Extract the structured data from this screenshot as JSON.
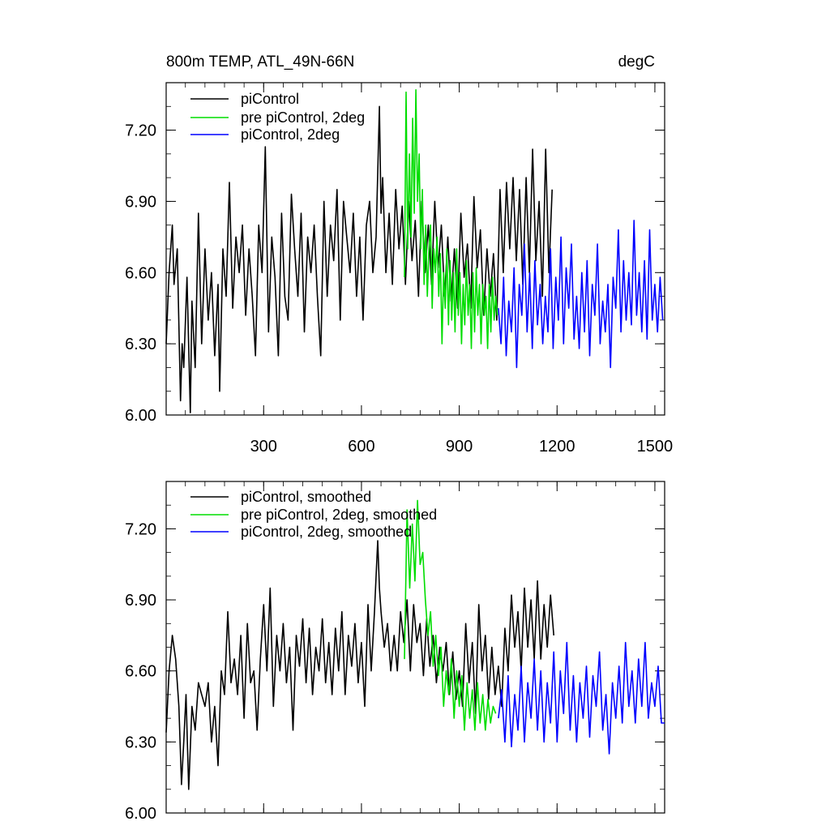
{
  "chart_data": [
    {
      "type": "line",
      "title_left": "800m TEMP, ATL_49N-66N",
      "title_right": "degC",
      "xlim": [
        1,
        1530
      ],
      "ylim": [
        6.0,
        7.4
      ],
      "xticks": [
        300,
        600,
        900,
        1200,
        1500
      ],
      "xtick_labels": [
        "300",
        "600",
        "900",
        "1200",
        "1500"
      ],
      "yticks": [
        6.0,
        6.3,
        6.6,
        6.9,
        7.2
      ],
      "ytick_labels": [
        "6.00",
        "6.30",
        "6.60",
        "6.90",
        "7.20"
      ],
      "legend": [
        "piControl",
        "pre piControl, 2deg",
        "piControl, 2deg"
      ],
      "series": [
        {
          "name": "piControl",
          "color": "#000000",
          "x": [
            1,
            10,
            20,
            25,
            35,
            45,
            50,
            55,
            65,
            75,
            80,
            90,
            100,
            110,
            120,
            130,
            140,
            150,
            160,
            165,
            175,
            185,
            195,
            205,
            215,
            225,
            235,
            245,
            255,
            265,
            275,
            285,
            295,
            305,
            315,
            325,
            335,
            345,
            355,
            365,
            375,
            385,
            395,
            405,
            415,
            425,
            435,
            445,
            455,
            465,
            475,
            485,
            495,
            505,
            515,
            525,
            535,
            545,
            555,
            565,
            575,
            585,
            595,
            605,
            615,
            625,
            635,
            645,
            655,
            660,
            665,
            675,
            685,
            695,
            705,
            715,
            725,
            735,
            745,
            755,
            765,
            775,
            785,
            795,
            805,
            815,
            825,
            835,
            845,
            855,
            865,
            875,
            885,
            895,
            905,
            915,
            925,
            935,
            945,
            955,
            965,
            975,
            985,
            995,
            1005,
            1015,
            1025,
            1035,
            1045,
            1055,
            1065,
            1075,
            1085,
            1095,
            1105,
            1115,
            1125,
            1135,
            1145,
            1155,
            1165,
            1175,
            1185
          ],
          "values": [
            6.3,
            6.6,
            6.8,
            6.55,
            6.7,
            6.06,
            6.3,
            6.2,
            6.58,
            6.01,
            6.48,
            6.2,
            6.85,
            6.3,
            6.7,
            6.4,
            6.6,
            6.25,
            6.55,
            6.1,
            6.7,
            6.5,
            6.98,
            6.45,
            6.75,
            6.6,
            6.8,
            6.42,
            6.7,
            6.5,
            6.25,
            6.8,
            6.6,
            7.13,
            6.35,
            6.75,
            6.58,
            6.25,
            6.85,
            6.5,
            6.4,
            6.93,
            6.7,
            6.5,
            6.85,
            6.35,
            6.75,
            6.6,
            6.8,
            6.5,
            6.25,
            6.9,
            6.5,
            6.8,
            6.65,
            6.95,
            6.4,
            6.9,
            6.75,
            6.6,
            6.85,
            6.5,
            6.75,
            6.4,
            6.8,
            6.9,
            6.6,
            6.75,
            7.3,
            6.85,
            7.0,
            6.6,
            6.85,
            6.55,
            6.95,
            6.7,
            6.88,
            6.55,
            6.9,
            6.65,
            6.82,
            6.5,
            6.9,
            6.6,
            6.8,
            6.55,
            6.9,
            6.62,
            6.8,
            6.5,
            6.75,
            6.48,
            6.7,
            6.45,
            6.85,
            6.58,
            6.72,
            6.45,
            6.92,
            6.62,
            6.78,
            6.42,
            6.7,
            6.5,
            6.68,
            6.4,
            6.95,
            6.6,
            6.98,
            6.7,
            7.0,
            6.65,
            6.95,
            6.55,
            7.0,
            6.6,
            7.12,
            6.65,
            6.9,
            6.5,
            7.12,
            6.6,
            6.95
          ]
        },
        {
          "name": "pre piControl, 2deg",
          "color": "#00dd00",
          "x": [
            732,
            737,
            742,
            747,
            752,
            757,
            762,
            767,
            772,
            777,
            782,
            787,
            792,
            797,
            802,
            807,
            812,
            817,
            822,
            827,
            832,
            837,
            842,
            847,
            852,
            857,
            862,
            867,
            872,
            877,
            882,
            887,
            892,
            897,
            902,
            907,
            912,
            917,
            922,
            927,
            932,
            937,
            942,
            947,
            952,
            957,
            962,
            967,
            972,
            977,
            982,
            987,
            992,
            997,
            1002,
            1007,
            1012,
            1017
          ],
          "values": [
            6.58,
            7.36,
            6.7,
            7.1,
            6.75,
            7.25,
            6.85,
            7.37,
            6.9,
            7.1,
            6.7,
            6.95,
            6.55,
            6.8,
            6.5,
            6.7,
            6.8,
            6.45,
            6.7,
            6.6,
            6.75,
            6.5,
            6.68,
            6.3,
            6.6,
            6.45,
            6.7,
            6.38,
            6.65,
            6.4,
            6.6,
            6.35,
            6.7,
            6.42,
            6.6,
            6.3,
            6.55,
            6.38,
            6.65,
            6.42,
            6.55,
            6.28,
            6.6,
            6.35,
            6.62,
            6.42,
            6.55,
            6.3,
            6.55,
            6.42,
            6.5,
            6.28,
            6.55,
            6.35,
            6.58,
            6.4,
            6.5,
            6.42
          ]
        },
        {
          "name": "piControl, 2deg",
          "color": "#0000ff",
          "x": [
            1020,
            1028,
            1036,
            1044,
            1052,
            1060,
            1068,
            1076,
            1084,
            1092,
            1100,
            1108,
            1116,
            1124,
            1132,
            1140,
            1148,
            1156,
            1164,
            1172,
            1180,
            1188,
            1196,
            1204,
            1212,
            1220,
            1228,
            1236,
            1244,
            1252,
            1260,
            1268,
            1276,
            1284,
            1292,
            1300,
            1308,
            1316,
            1324,
            1332,
            1340,
            1348,
            1356,
            1364,
            1372,
            1380,
            1388,
            1396,
            1404,
            1412,
            1420,
            1428,
            1436,
            1444,
            1452,
            1460,
            1468,
            1476,
            1484,
            1492,
            1500,
            1508,
            1516,
            1524
          ],
          "values": [
            6.45,
            6.3,
            6.58,
            6.25,
            6.48,
            6.35,
            6.62,
            6.2,
            6.55,
            6.42,
            6.72,
            6.35,
            6.6,
            6.28,
            6.65,
            6.38,
            6.55,
            6.3,
            6.5,
            6.35,
            6.7,
            6.28,
            6.58,
            6.4,
            6.75,
            6.3,
            6.62,
            6.45,
            6.72,
            6.32,
            6.5,
            6.28,
            6.6,
            6.35,
            6.65,
            6.25,
            6.55,
            6.42,
            6.72,
            6.3,
            6.48,
            6.35,
            6.55,
            6.2,
            6.58,
            6.45,
            6.78,
            6.35,
            6.65,
            6.4,
            6.6,
            6.38,
            6.82,
            6.42,
            6.6,
            6.35,
            6.65,
            6.32,
            6.78,
            6.4,
            6.55,
            6.35,
            6.58,
            6.4
          ]
        }
      ]
    },
    {
      "type": "line",
      "xlim": [
        1,
        1530
      ],
      "ylim": [
        6.0,
        7.4
      ],
      "xticks": [
        300,
        600,
        900,
        1200,
        1500
      ],
      "yticks": [
        6.0,
        6.3,
        6.6,
        6.9,
        7.2
      ],
      "ytick_labels": [
        "6.00",
        "6.30",
        "6.60",
        "6.90",
        "7.20"
      ],
      "legend": [
        "piControl, smoothed",
        "pre piControl, 2deg, smoothed",
        "piControl, 2deg, smoothed"
      ],
      "series": [
        {
          "name": "piControl, smoothed",
          "color": "#000000",
          "x": [
            1,
            10,
            20,
            30,
            40,
            48,
            55,
            62,
            70,
            80,
            90,
            100,
            110,
            120,
            130,
            140,
            150,
            160,
            170,
            180,
            190,
            200,
            210,
            220,
            230,
            240,
            250,
            260,
            270,
            280,
            290,
            300,
            310,
            320,
            330,
            340,
            350,
            360,
            370,
            380,
            390,
            400,
            410,
            420,
            430,
            440,
            450,
            460,
            470,
            480,
            490,
            500,
            510,
            520,
            530,
            540,
            550,
            560,
            570,
            580,
            590,
            600,
            610,
            620,
            630,
            640,
            650,
            655,
            660,
            670,
            680,
            690,
            700,
            710,
            720,
            730,
            740,
            750,
            760,
            770,
            780,
            790,
            800,
            810,
            820,
            830,
            840,
            850,
            860,
            870,
            880,
            890,
            900,
            910,
            920,
            930,
            940,
            950,
            960,
            970,
            980,
            990,
            1000,
            1010,
            1020,
            1030,
            1040,
            1050,
            1060,
            1070,
            1080,
            1090,
            1100,
            1110,
            1120,
            1130,
            1140,
            1150,
            1160,
            1170,
            1180,
            1190
          ],
          "values": [
            6.34,
            6.6,
            6.75,
            6.65,
            6.45,
            6.12,
            6.3,
            6.5,
            6.1,
            6.45,
            6.35,
            6.55,
            6.5,
            6.45,
            6.55,
            6.3,
            6.45,
            6.2,
            6.6,
            6.5,
            6.85,
            6.55,
            6.65,
            6.5,
            6.75,
            6.4,
            6.8,
            6.55,
            6.6,
            6.35,
            6.65,
            6.88,
            6.6,
            6.95,
            6.45,
            6.75,
            6.6,
            6.8,
            6.55,
            6.7,
            6.35,
            6.75,
            6.62,
            6.82,
            6.55,
            6.78,
            6.5,
            6.7,
            6.6,
            6.82,
            6.55,
            6.72,
            6.5,
            6.78,
            6.6,
            6.85,
            6.5,
            6.75,
            6.62,
            6.8,
            6.55,
            6.72,
            6.45,
            6.88,
            6.6,
            6.85,
            7.15,
            6.95,
            6.85,
            6.7,
            6.8,
            6.6,
            6.75,
            6.6,
            6.85,
            6.72,
            6.9,
            6.6,
            6.88,
            6.72,
            6.8,
            6.58,
            6.82,
            6.62,
            6.75,
            6.55,
            6.7,
            6.6,
            6.72,
            6.5,
            6.68,
            6.48,
            6.6,
            6.45,
            6.8,
            6.55,
            6.72,
            6.42,
            6.88,
            6.6,
            6.75,
            6.48,
            6.7,
            6.5,
            6.62,
            6.45,
            6.78,
            6.6,
            6.92,
            6.7,
            6.85,
            6.6,
            6.95,
            6.7,
            6.9,
            6.65,
            6.98,
            6.65,
            6.88,
            6.7,
            6.92,
            6.75
          ]
        },
        {
          "name": "pre piControl, 2deg, smoothed",
          "color": "#00dd00",
          "x": [
            732,
            740,
            748,
            756,
            764,
            772,
            780,
            788,
            796,
            804,
            812,
            820,
            828,
            836,
            844,
            852,
            860,
            868,
            876,
            884,
            892,
            900,
            908,
            916,
            924,
            932,
            940,
            948,
            956,
            964,
            972,
            980,
            988,
            996,
            1004,
            1012
          ],
          "values": [
            6.65,
            7.28,
            6.95,
            7.22,
            6.98,
            7.32,
            7.05,
            7.1,
            6.9,
            6.75,
            6.85,
            6.62,
            6.75,
            6.58,
            6.7,
            6.45,
            6.6,
            6.5,
            6.65,
            6.4,
            6.6,
            6.45,
            6.58,
            6.35,
            6.55,
            6.4,
            6.52,
            6.35,
            6.55,
            6.38,
            6.5,
            6.35,
            6.48,
            6.38,
            6.45,
            6.42
          ]
        },
        {
          "name": "piControl, 2deg, smoothed",
          "color": "#0000ff",
          "x": [
            1020,
            1030,
            1040,
            1050,
            1060,
            1070,
            1080,
            1090,
            1100,
            1110,
            1120,
            1130,
            1140,
            1150,
            1160,
            1170,
            1180,
            1190,
            1200,
            1210,
            1220,
            1230,
            1240,
            1250,
            1260,
            1270,
            1280,
            1290,
            1300,
            1310,
            1320,
            1330,
            1340,
            1350,
            1360,
            1370,
            1380,
            1390,
            1400,
            1410,
            1420,
            1430,
            1440,
            1450,
            1460,
            1470,
            1480,
            1490,
            1500,
            1510,
            1520,
            1530
          ],
          "values": [
            6.4,
            6.52,
            6.3,
            6.58,
            6.28,
            6.5,
            6.35,
            6.62,
            6.3,
            6.55,
            6.4,
            6.65,
            6.35,
            6.6,
            6.3,
            6.55,
            6.38,
            6.68,
            6.3,
            6.6,
            6.42,
            6.72,
            6.35,
            6.58,
            6.3,
            6.55,
            6.4,
            6.62,
            6.32,
            6.58,
            6.45,
            6.68,
            6.35,
            6.5,
            6.25,
            6.55,
            6.4,
            6.62,
            6.38,
            6.72,
            6.45,
            6.6,
            6.38,
            6.65,
            6.45,
            6.72,
            6.4,
            6.55,
            6.45,
            6.62,
            6.38,
            6.38
          ]
        }
      ]
    }
  ]
}
